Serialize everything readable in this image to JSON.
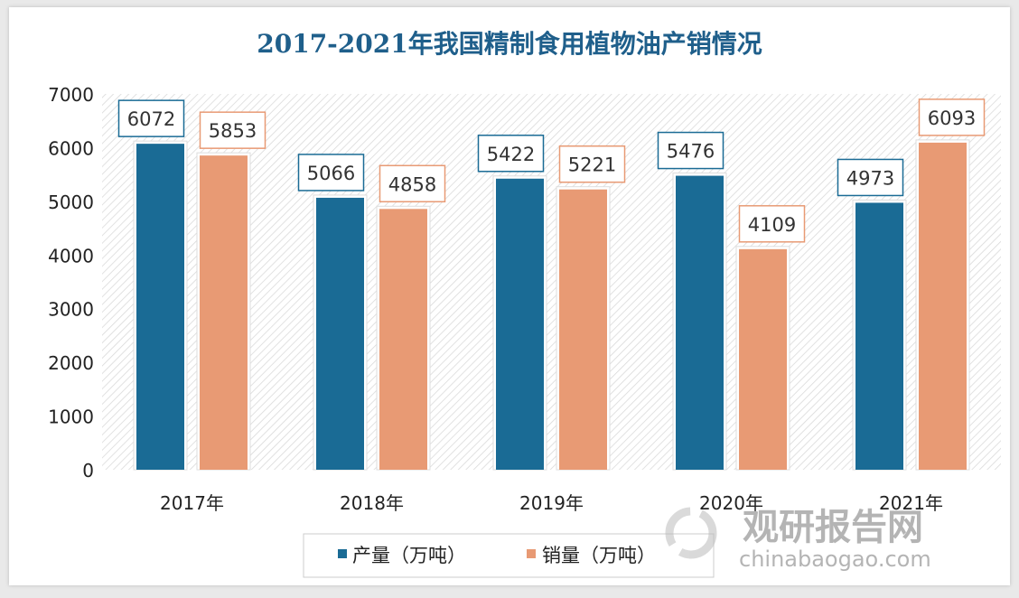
{
  "chart_data": {
    "type": "bar",
    "title": "2017-2021年我国精制食用植物油产销情况",
    "categories": [
      "2017年",
      "2018年",
      "2019年",
      "2020年",
      "2021年"
    ],
    "series": [
      {
        "name": "产量（万吨）",
        "color": "#1a6b95",
        "values": [
          6072,
          5066,
          5422,
          5476,
          4973
        ]
      },
      {
        "name": "销量（万吨）",
        "color": "#e89a74",
        "values": [
          5853,
          4858,
          5221,
          4109,
          6093
        ]
      }
    ],
    "ylim": [
      0,
      7000
    ],
    "yticks": [
      0,
      1000,
      2000,
      3000,
      4000,
      5000,
      6000,
      7000
    ],
    "grid": false,
    "legend": "bottom",
    "title_color": "#1f5f8b"
  },
  "watermark": {
    "cn": "观研报告网",
    "en": "chinabaogao.com"
  }
}
